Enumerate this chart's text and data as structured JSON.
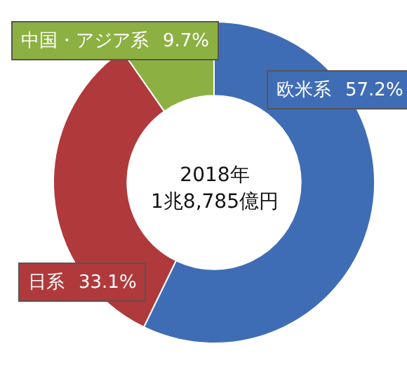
{
  "chart_data": {
    "type": "donut",
    "title": "2018年\n1兆8,785億円",
    "categories": [
      "欧米系",
      "日系",
      "中国・アジア系"
    ],
    "values": [
      57.2,
      33.1,
      9.7
    ],
    "colors": [
      "#3f6db5",
      "#b0393c",
      "#8db042"
    ],
    "value_labels": [
      "57.2%",
      "33.1%",
      "9.7%"
    ],
    "legend": false
  }
}
